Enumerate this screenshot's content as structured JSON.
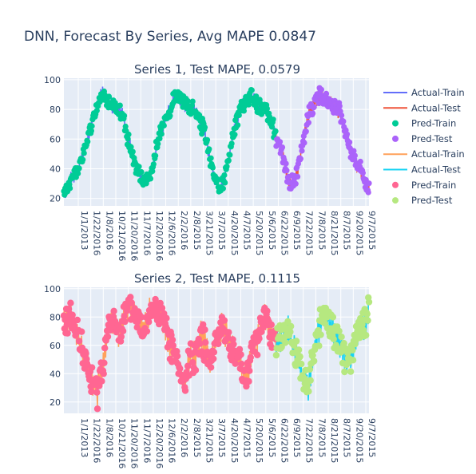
{
  "figure": {
    "title": "DNN, Forecast By Series, Avg MAPE 0.0847"
  },
  "legend": {
    "items": [
      {
        "label": "Actual-Train",
        "kind": "line",
        "color": "#636efa"
      },
      {
        "label": "Actual-Test",
        "kind": "line",
        "color": "#ef553b"
      },
      {
        "label": "Pred-Train",
        "kind": "marker",
        "color": "#00cc96"
      },
      {
        "label": "Pred-Test",
        "kind": "marker",
        "color": "#ab63fa"
      },
      {
        "label": "Actual-Train",
        "kind": "line",
        "color": "#ffa15a"
      },
      {
        "label": "Actual-Test",
        "kind": "line",
        "color": "#19d3f3"
      },
      {
        "label": "Pred-Train",
        "kind": "marker",
        "color": "#ff6692"
      },
      {
        "label": "Pred-Test",
        "kind": "marker",
        "color": "#b6e880"
      }
    ]
  },
  "chart_data": [
    {
      "type": "line",
      "title": "Series 1, Test MAPE, 0.0579",
      "ylim": [
        15,
        101
      ],
      "yticks": [
        20,
        40,
        60,
        80,
        100
      ],
      "grid": true,
      "xtick_labels": [
        "1/1/2013",
        "1/22/2016",
        "1/8/2016",
        "10/21/2016",
        "11/20/2016",
        "11/7/2016",
        "12/20/2016",
        "12/6/2016",
        "2/2/2016",
        "2/8/2015",
        "3/21/2015",
        "3/7/2015",
        "4/20/2015",
        "4/7/2015",
        "5/20/2015",
        "5/6/2015",
        "6/22/2015",
        "6/9/2015",
        "7/22/2015",
        "7/8/2015",
        "8/21/2015",
        "8/7/2015",
        "9/20/2015",
        "9/7/2015"
      ],
      "train_fraction": 0.695,
      "series": [
        {
          "name": "Actual-Train",
          "color": "#636efa",
          "mode": "line"
        },
        {
          "name": "Actual-Test",
          "color": "#ef553b",
          "mode": "line"
        },
        {
          "name": "Pred-Train",
          "color": "#00cc96",
          "mode": "markers"
        },
        {
          "name": "Pred-Test",
          "color": "#ab63fa",
          "mode": "markers"
        }
      ],
      "anchors": [
        [
          0,
          22
        ],
        [
          0.02,
          33
        ],
        [
          0.05,
          40
        ],
        [
          0.075,
          58
        ],
        [
          0.1,
          78
        ],
        [
          0.115,
          85
        ],
        [
          0.125,
          92
        ],
        [
          0.145,
          84
        ],
        [
          0.175,
          81
        ],
        [
          0.195,
          76
        ],
        [
          0.21,
          60
        ],
        [
          0.235,
          42
        ],
        [
          0.26,
          32
        ],
        [
          0.285,
          36
        ],
        [
          0.31,
          60
        ],
        [
          0.33,
          72
        ],
        [
          0.35,
          82
        ],
        [
          0.37,
          91
        ],
        [
          0.39,
          84
        ],
        [
          0.425,
          80
        ],
        [
          0.44,
          74
        ],
        [
          0.46,
          66
        ],
        [
          0.48,
          46
        ],
        [
          0.495,
          32
        ],
        [
          0.51,
          27
        ],
        [
          0.53,
          38
        ],
        [
          0.555,
          62
        ],
        [
          0.575,
          80
        ],
        [
          0.59,
          84
        ],
        [
          0.61,
          90
        ],
        [
          0.635,
          83
        ],
        [
          0.66,
          80
        ],
        [
          0.675,
          73
        ],
        [
          0.695,
          62
        ],
        [
          0.715,
          52
        ],
        [
          0.735,
          32
        ],
        [
          0.75,
          30
        ],
        [
          0.765,
          38
        ],
        [
          0.785,
          60
        ],
        [
          0.805,
          78
        ],
        [
          0.82,
          84
        ],
        [
          0.84,
          90
        ],
        [
          0.86,
          86
        ],
        [
          0.885,
          82
        ],
        [
          0.905,
          78
        ],
        [
          0.925,
          62
        ],
        [
          0.945,
          50
        ],
        [
          0.97,
          40
        ],
        [
          0.99,
          30
        ],
        [
          1.0,
          26
        ]
      ]
    },
    {
      "type": "line",
      "title": "Series 2, Test MAPE, 0.1115",
      "ylim": [
        12,
        101
      ],
      "yticks": [
        20,
        40,
        60,
        80,
        100
      ],
      "grid": true,
      "xtick_labels": [
        "1/1/2013",
        "1/22/2016",
        "1/8/2016",
        "10/21/2016",
        "11/20/2016",
        "11/7/2016",
        "12/20/2016",
        "12/6/2016",
        "2/2/2016",
        "2/8/2015",
        "3/21/2015",
        "3/7/2015",
        "4/20/2015",
        "4/7/2015",
        "5/20/2015",
        "5/6/2015",
        "6/22/2015",
        "6/9/2015",
        "7/22/2015",
        "7/8/2015",
        "8/21/2015",
        "8/7/2015",
        "9/20/2015",
        "9/7/2015"
      ],
      "train_fraction": 0.695,
      "series": [
        {
          "name": "Actual-Train",
          "color": "#ffa15a",
          "mode": "line"
        },
        {
          "name": "Actual-Test",
          "color": "#19d3f3",
          "mode": "line"
        },
        {
          "name": "Pred-Train",
          "color": "#ff6692",
          "mode": "markers"
        },
        {
          "name": "Pred-Test",
          "color": "#b6e880",
          "mode": "markers"
        }
      ],
      "anchors": [
        [
          0,
          75
        ],
        [
          0.02,
          82
        ],
        [
          0.04,
          70
        ],
        [
          0.055,
          60
        ],
        [
          0.075,
          45
        ],
        [
          0.09,
          35
        ],
        [
          0.11,
          28
        ],
        [
          0.13,
          52
        ],
        [
          0.15,
          74
        ],
        [
          0.165,
          80
        ],
        [
          0.18,
          68
        ],
        [
          0.2,
          82
        ],
        [
          0.22,
          86
        ],
        [
          0.24,
          78
        ],
        [
          0.26,
          72
        ],
        [
          0.28,
          84
        ],
        [
          0.3,
          86
        ],
        [
          0.32,
          80
        ],
        [
          0.34,
          66
        ],
        [
          0.36,
          55
        ],
        [
          0.38,
          40
        ],
        [
          0.395,
          30
        ],
        [
          0.415,
          55
        ],
        [
          0.43,
          52
        ],
        [
          0.45,
          68
        ],
        [
          0.465,
          58
        ],
        [
          0.48,
          50
        ],
        [
          0.5,
          64
        ],
        [
          0.52,
          76
        ],
        [
          0.54,
          62
        ],
        [
          0.555,
          55
        ],
        [
          0.575,
          50
        ],
        [
          0.59,
          38
        ],
        [
          0.605,
          40
        ],
        [
          0.62,
          58
        ],
        [
          0.64,
          70
        ],
        [
          0.66,
          82
        ],
        [
          0.675,
          70
        ],
        [
          0.695,
          62
        ],
        [
          0.715,
          65
        ],
        [
          0.735,
          72
        ],
        [
          0.75,
          60
        ],
        [
          0.77,
          50
        ],
        [
          0.785,
          35
        ],
        [
          0.8,
          30
        ],
        [
          0.815,
          48
        ],
        [
          0.83,
          68
        ],
        [
          0.85,
          80
        ],
        [
          0.87,
          76
        ],
        [
          0.89,
          66
        ],
        [
          0.905,
          60
        ],
        [
          0.925,
          50
        ],
        [
          0.945,
          55
        ],
        [
          0.965,
          68
        ],
        [
          0.985,
          74
        ],
        [
          1.0,
          88
        ]
      ]
    }
  ]
}
